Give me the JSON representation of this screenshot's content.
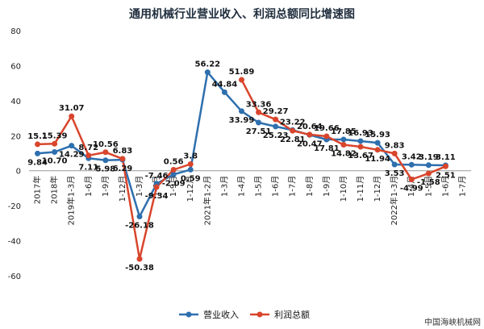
{
  "watermark": "中国海峡机械网",
  "chart_data": {
    "type": "line",
    "title": "通用机械行业营业收入、利润总额同比增速图",
    "xlabel": "",
    "ylabel": "",
    "ylim": [
      -60,
      80
    ],
    "yticks": [
      80,
      60,
      40,
      20,
      0,
      -20,
      -40,
      -60
    ],
    "grid": false,
    "legend_position": "bottom",
    "categories": [
      "2017年",
      "2018年",
      "2019年1-3月",
      "1-6月",
      "1-9月",
      "1-12月",
      "1-3月",
      "1-6月",
      "1-9月",
      "1-12月",
      "2021年1-2月",
      "1-3月",
      "1-4月",
      "1-5月",
      "1-6月",
      "1-7月",
      "1-8月",
      "1-9月",
      "1-10月",
      "1-11月",
      "1-12月",
      "2022年1-3月",
      "1-4月",
      "1-5月",
      "1-6月",
      "1-7月"
    ],
    "series": [
      {
        "name": "营业收入",
        "color": "#2e6fae",
        "values": [
          9.84,
          10.7,
          14.29,
          7.11,
          5.98,
          6.29,
          -26.18,
          -7.46,
          -2.09,
          0.59,
          56.22,
          44.84,
          33.99,
          27.51,
          25.23,
          23.22,
          20.47,
          17.81,
          17.85,
          16.93,
          15.93,
          3.53,
          3.42,
          3.19,
          3.11,
          null
        ],
        "labels": [
          "9.84",
          "10.70",
          "14.29",
          "7.11",
          "5.98",
          "6.29",
          "-26.18",
          "-7.46",
          "-2.09",
          "0.59",
          "56.22",
          "44.84",
          "33.99",
          "27.51",
          "25.23",
          "23.22",
          "20.47",
          "17.81",
          "17.85",
          "16.93",
          "15.93",
          "3.53",
          "3.42",
          "3.19",
          "3.11",
          null
        ]
      },
      {
        "name": "利润总额",
        "color": "#d9452c",
        "values": [
          15.1,
          15.39,
          31.07,
          8.72,
          10.56,
          6.83,
          -50.38,
          -9.34,
          0.56,
          3.8,
          null,
          null,
          51.89,
          33.36,
          29.27,
          22.81,
          20.64,
          19.66,
          14.82,
          13.67,
          11.94,
          9.83,
          -4.99,
          -1.58,
          2.51,
          null
        ],
        "labels": [
          "15.1",
          "15.39",
          "31.07",
          "8.72",
          "10.56",
          "6.83",
          "-50.38",
          "-9.34",
          "0.56",
          "3.8",
          null,
          null,
          "51.89",
          "33.36",
          "29.27",
          "22.81",
          "20.64",
          "19.66",
          "14.82",
          "13.67",
          "11.94",
          "9.83",
          "-4.99",
          "-1.58",
          "2.51",
          null
        ]
      }
    ]
  }
}
